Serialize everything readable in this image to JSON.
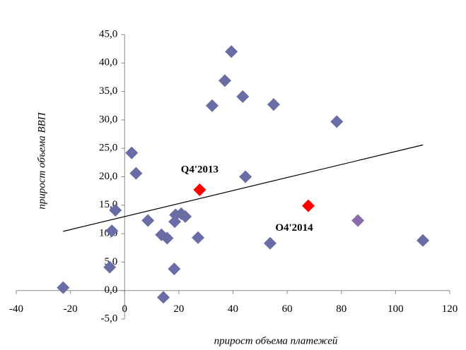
{
  "chart_data": {
    "type": "scatter",
    "xlabel": "прирост объема платежей",
    "ylabel": "прирост объема ВВП",
    "xlim": [
      -40,
      120
    ],
    "xticks": [
      -40,
      -20,
      0,
      20,
      40,
      60,
      80,
      100,
      120
    ],
    "ylim": [
      -5,
      45
    ],
    "yticks": [
      {
        "value": -5,
        "label": "-5,0"
      },
      {
        "value": 0,
        "label": "0,0"
      },
      {
        "value": 5,
        "label": "5,0"
      },
      {
        "value": 10,
        "label": "10,0"
      },
      {
        "value": 15,
        "label": "15,0"
      },
      {
        "value": 20,
        "label": "20,0"
      },
      {
        "value": 25,
        "label": "25,0"
      },
      {
        "value": 30,
        "label": "30,0"
      },
      {
        "value": 35,
        "label": "35,0"
      },
      {
        "value": 40,
        "label": "40,0"
      },
      {
        "value": 45,
        "label": "45,0"
      }
    ],
    "series": [
      {
        "color": "#6a6ca6",
        "x": [
          -22.7,
          2.6,
          4.2,
          -3.4,
          -4.7,
          -5.5,
          8.6,
          13.6,
          15.7,
          14.3,
          18.3,
          18.8,
          18.5,
          20.9,
          22.4,
          27.1,
          32.3,
          37.0,
          39.4,
          43.6,
          44.6,
          55.0,
          53.7,
          78.3,
          110.1
        ],
        "values": [
          0.5,
          24.2,
          20.6,
          14.1,
          10.5,
          4.1,
          12.3,
          9.8,
          9.2,
          -1.2,
          3.8,
          13.3,
          12.1,
          13.5,
          13.0,
          9.3,
          32.5,
          36.9,
          42.0,
          34.1,
          20.0,
          32.7,
          8.3,
          29.7,
          8.8
        ]
      },
      {
        "color": "#8a6aa8",
        "x": [
          86.1
        ],
        "values": [
          12.3
        ]
      },
      {
        "color": "#ff0000",
        "x": [
          27.7,
          67.8
        ],
        "values": [
          17.7,
          14.9
        ]
      }
    ],
    "trendline": {
      "x": [
        -22.7,
        110.1
      ],
      "values": [
        10.4,
        25.6
      ]
    },
    "annotations": [
      {
        "text": "Q4'2013",
        "x": 27.7,
        "y": 17.7
      },
      {
        "text": "O4'2014",
        "x": 67.8,
        "y": 14.9
      }
    ]
  }
}
